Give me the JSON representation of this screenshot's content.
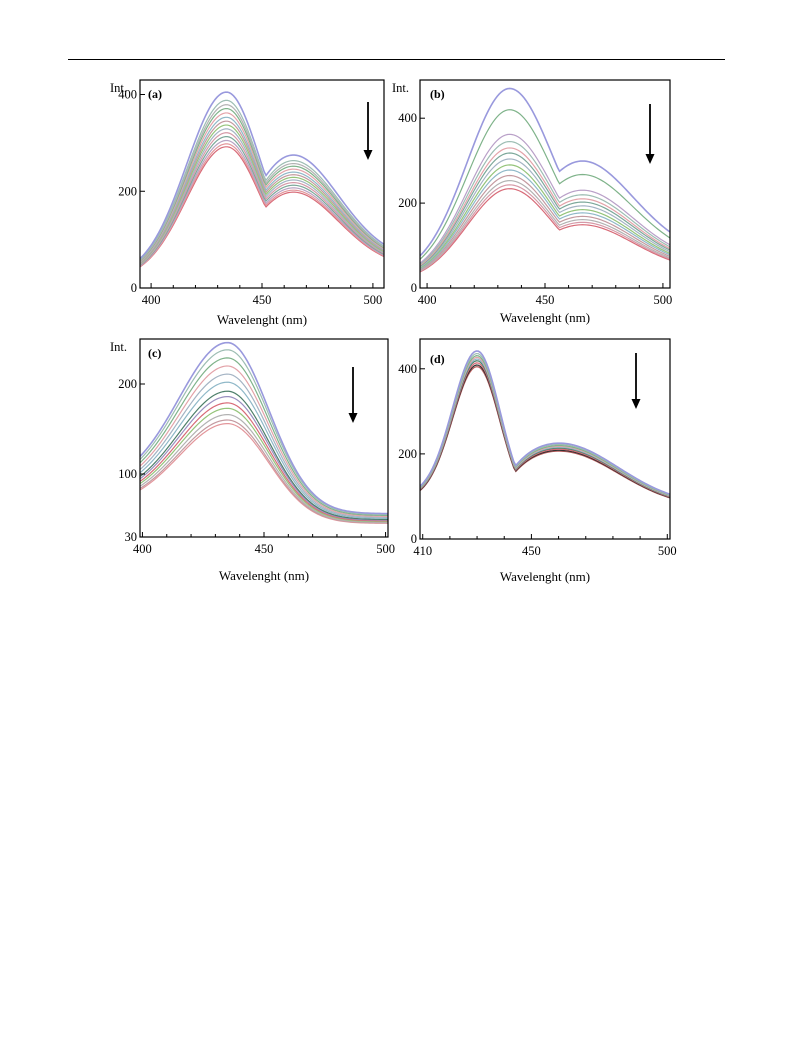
{
  "page": {
    "background": "#ffffff"
  },
  "chart_data": [
    {
      "panel": "(a)",
      "type": "line",
      "ylabel": "Int.",
      "xlabel": "Wavelenght (nm)",
      "xlim": [
        395,
        505
      ],
      "ylim": [
        0,
        430
      ],
      "xticks": [
        400,
        450,
        500
      ],
      "yticks": [
        0,
        200,
        400
      ],
      "arrow": "down",
      "shape": {
        "peak_x": 434,
        "left_width": 18,
        "right_width": 15,
        "shoulder_x": 462,
        "shoulder_width": 22,
        "shoulder_ratio": 0.56,
        "base_left": 0.06,
        "base_right": 0.14
      },
      "series": [
        {
          "color": "#9999dd",
          "peak": 405
        },
        {
          "color": "#9dbdb3",
          "peak": 388
        },
        {
          "color": "#b2b2b2",
          "peak": 379
        },
        {
          "color": "#7fb38a",
          "peak": 371
        },
        {
          "color": "#e3a3a9",
          "peak": 362
        },
        {
          "color": "#8fb8c8",
          "peak": 353
        },
        {
          "color": "#c49aa0",
          "peak": 345
        },
        {
          "color": "#95c47a",
          "peak": 337
        },
        {
          "color": "#a4b4c4",
          "peak": 329
        },
        {
          "color": "#d59aa8",
          "peak": 321
        },
        {
          "color": "#7ca89a",
          "peak": 313
        },
        {
          "color": "#b8a3c3",
          "peak": 305
        },
        {
          "color": "#e3969b",
          "peak": 298
        },
        {
          "color": "#d86b78",
          "peak": 292
        }
      ]
    },
    {
      "panel": "(b)",
      "type": "line",
      "ylabel": "Int.",
      "xlabel": "Wavelenght (nm)",
      "xlim": [
        397,
        503
      ],
      "ylim": [
        0,
        490
      ],
      "xticks": [
        400,
        450,
        500
      ],
      "yticks": [
        0,
        200,
        400
      ],
      "arrow": "down",
      "shape": {
        "peak_x": 435,
        "left_width": 18,
        "right_width": 18,
        "shoulder_x": 462,
        "shoulder_width": 24,
        "shoulder_ratio": 0.52,
        "base_left": 0.06,
        "base_right": 0.16
      },
      "series": [
        {
          "color": "#9999dd",
          "peak": 470
        },
        {
          "color": "#7fb38a",
          "peak": 420
        },
        {
          "color": "#b9a0c8",
          "peak": 362
        },
        {
          "color": "#9dbdb3",
          "peak": 345
        },
        {
          "color": "#e3a3a9",
          "peak": 330
        },
        {
          "color": "#7ca89a",
          "peak": 318
        },
        {
          "color": "#a4b4c4",
          "peak": 304
        },
        {
          "color": "#95c47a",
          "peak": 290
        },
        {
          "color": "#8fb8c8",
          "peak": 278
        },
        {
          "color": "#c49aa0",
          "peak": 265
        },
        {
          "color": "#b2b2b2",
          "peak": 253
        },
        {
          "color": "#d59aa8",
          "peak": 243
        },
        {
          "color": "#d86b78",
          "peak": 234
        }
      ]
    },
    {
      "panel": "(c)",
      "type": "line",
      "ylabel": "Int.",
      "xlabel": "Wavelenght (nm)",
      "xlim": [
        399,
        501
      ],
      "ylim": [
        30,
        250
      ],
      "xticks": [
        400,
        450,
        500
      ],
      "yticks": [
        30,
        100,
        200
      ],
      "arrow": "down",
      "shape": {
        "peak_x": 435,
        "left_width": 20,
        "right_width": 17,
        "shoulder_x": 416,
        "shoulder_width": 10,
        "shoulder_ratio": 0.25,
        "base_left": 0.27,
        "base_right": 0.12
      },
      "series": [
        {
          "color": "#9999dd",
          "peak": 246
        },
        {
          "color": "#9dbdb3",
          "peak": 238
        },
        {
          "color": "#7fb38a",
          "peak": 229
        },
        {
          "color": "#e3a3a9",
          "peak": 220
        },
        {
          "color": "#a4b4c4",
          "peak": 211
        },
        {
          "color": "#8fb8c8",
          "peak": 202
        },
        {
          "color": "#4e7f6a",
          "peak": 192
        },
        {
          "color": "#9a8fc0",
          "peak": 186
        },
        {
          "color": "#d86b78",
          "peak": 179
        },
        {
          "color": "#95c47a",
          "peak": 173
        },
        {
          "color": "#b2b2b2",
          "peak": 166
        },
        {
          "color": "#c49aa0",
          "peak": 160
        },
        {
          "color": "#e3969b",
          "peak": 156
        }
      ]
    },
    {
      "panel": "(d)",
      "type": "line",
      "ylabel": "",
      "xlabel": "Wavelenght (nm)",
      "xlim": [
        409,
        501
      ],
      "ylim": [
        0,
        470
      ],
      "xticks": [
        410,
        450,
        500
      ],
      "yticks": [
        0,
        200,
        400
      ],
      "arrow": "down",
      "shape": {
        "peak_x": 430,
        "left_width": 9,
        "right_width": 8.5,
        "shoulder_x": 460,
        "shoulder_width": 22,
        "shoulder_ratio": 0.33,
        "base_left": 0.23,
        "base_right": 0.18
      },
      "series": [
        {
          "color": "#9999dd",
          "peak": 442
        },
        {
          "color": "#9dbdb3",
          "peak": 436
        },
        {
          "color": "#7fb38a",
          "peak": 431
        },
        {
          "color": "#e3a3a9",
          "peak": 427
        },
        {
          "color": "#8fb8c8",
          "peak": 423
        },
        {
          "color": "#4e7f6a",
          "peak": 419
        },
        {
          "color": "#d86b78",
          "peak": 414
        },
        {
          "color": "#333333",
          "peak": 409
        },
        {
          "color": "#b85a5a",
          "peak": 405
        }
      ]
    }
  ]
}
